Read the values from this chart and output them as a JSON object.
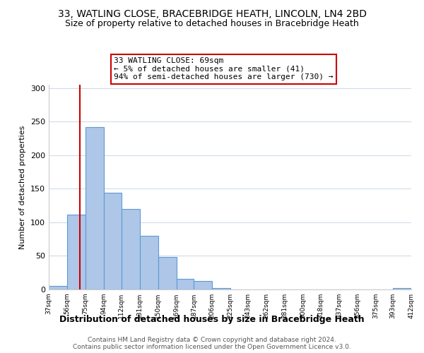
{
  "title": "33, WATLING CLOSE, BRACEBRIDGE HEATH, LINCOLN, LN4 2BD",
  "subtitle": "Size of property relative to detached houses in Bracebridge Heath",
  "xlabel": "Distribution of detached houses by size in Bracebridge Heath",
  "ylabel": "Number of detached properties",
  "bin_edges": [
    37,
    56,
    75,
    94,
    112,
    131,
    150,
    169,
    187,
    206,
    225,
    243,
    262,
    281,
    300,
    318,
    337,
    356,
    375,
    393,
    412
  ],
  "bin_labels": [
    "37sqm",
    "56sqm",
    "75sqm",
    "94sqm",
    "112sqm",
    "131sqm",
    "150sqm",
    "169sqm",
    "187sqm",
    "206sqm",
    "225sqm",
    "243sqm",
    "262sqm",
    "281sqm",
    "300sqm",
    "318sqm",
    "337sqm",
    "356sqm",
    "375sqm",
    "393sqm",
    "412sqm"
  ],
  "counts": [
    5,
    111,
    242,
    144,
    120,
    80,
    48,
    16,
    13,
    2,
    0,
    0,
    0,
    0,
    0,
    0,
    0,
    0,
    0,
    2
  ],
  "bar_color": "#aec6e8",
  "bar_edge_color": "#5b9bd5",
  "property_line_x": 69,
  "property_line_color": "#cc0000",
  "annotation_line1": "33 WATLING CLOSE: 69sqm",
  "annotation_line2": "← 5% of detached houses are smaller (41)",
  "annotation_line3": "94% of semi-detached houses are larger (730) →",
  "annotation_box_color": "#ffffff",
  "annotation_box_edge": "#cc0000",
  "ylim": [
    0,
    305
  ],
  "yticks": [
    0,
    50,
    100,
    150,
    200,
    250,
    300
  ],
  "footer1": "Contains HM Land Registry data © Crown copyright and database right 2024.",
  "footer2": "Contains public sector information licensed under the Open Government Licence v3.0.",
  "title_fontsize": 10,
  "subtitle_fontsize": 9,
  "bg_color": "#ffffff",
  "grid_color": "#d0dce8"
}
